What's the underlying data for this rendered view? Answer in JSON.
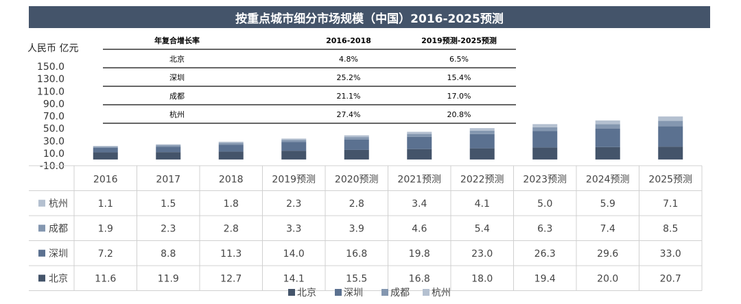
{
  "title": "按重点城市细分市场规模（中国）2016-2025预测",
  "unit_label": "人民币 亿元",
  "colors": {
    "北京": "#44546a",
    "深圳": "#5b7190",
    "成都": "#8497b0",
    "杭州": "#b4c0d0"
  },
  "cagr_table": {
    "headers": [
      "年复合增长率",
      "2016-2018",
      "2019预测-2025预测"
    ],
    "rows": [
      [
        "北京",
        "4.8%",
        "6.5%"
      ],
      [
        "深圳",
        "25.2%",
        "15.4%"
      ],
      [
        "成都",
        "21.1%",
        "17.0%"
      ],
      [
        "杭州",
        "27.4%",
        "20.8%"
      ]
    ]
  },
  "chart_data": {
    "type": "bar",
    "stacked": true,
    "title": "按重点城市细分市场规模（中国）2016-2025预测",
    "ylabel": "人民币 亿元",
    "ylim": [
      -10,
      150
    ],
    "yticks": [
      "150.0",
      "130.0",
      "110.0",
      "90.0",
      "70.0",
      "50.0",
      "30.0",
      "10.0",
      "-10.0"
    ],
    "ytick_values": [
      150,
      130,
      110,
      90,
      70,
      50,
      30,
      10,
      -10
    ],
    "categories": [
      "2016",
      "2017",
      "2018",
      "2019预测",
      "2020预测",
      "2021预测",
      "2022预测",
      "2023预测",
      "2024预测",
      "2025预测"
    ],
    "series": [
      {
        "name": "北京",
        "values": [
          11.6,
          11.9,
          12.7,
          14.1,
          15.5,
          16.8,
          18.0,
          19.4,
          20.0,
          20.7
        ]
      },
      {
        "name": "深圳",
        "values": [
          7.2,
          8.8,
          11.3,
          14.0,
          16.8,
          19.8,
          23.0,
          26.3,
          29.6,
          33.0
        ]
      },
      {
        "name": "成都",
        "values": [
          1.9,
          2.3,
          2.8,
          3.3,
          3.9,
          4.6,
          5.4,
          6.3,
          7.4,
          8.5
        ]
      },
      {
        "name": "杭州",
        "values": [
          1.1,
          1.5,
          1.8,
          2.3,
          2.8,
          3.4,
          4.1,
          5.0,
          5.9,
          7.1
        ]
      }
    ],
    "table_row_order": [
      "杭州",
      "成都",
      "深圳",
      "北京"
    ],
    "legend": [
      "北京",
      "深圳",
      "成都",
      "杭州"
    ],
    "legend_position": "bottom"
  }
}
